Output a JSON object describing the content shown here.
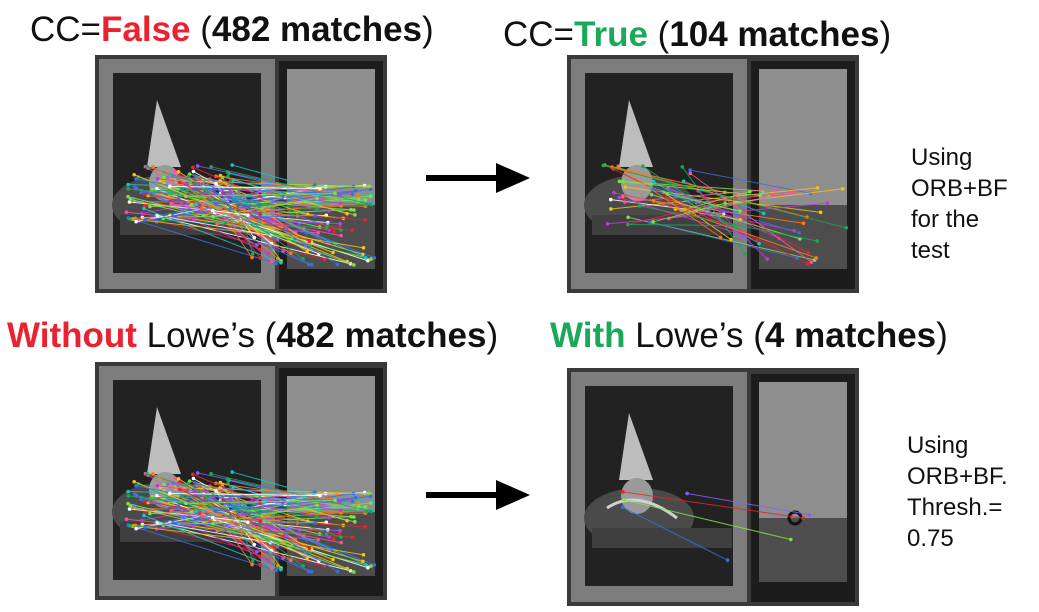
{
  "top_left_title": {
    "prefix": "CC=",
    "flag": "False",
    "open": " (",
    "count": "482 matches",
    "close": ")"
  },
  "top_right_title": {
    "prefix": "CC=",
    "flag": "True",
    "open": " (",
    "count": "104 matches",
    "close": ")"
  },
  "bottom_left_title": {
    "flag": "Without",
    "middle": " Lowe’s (",
    "count": "482 matches",
    "close": ")"
  },
  "bottom_right_title": {
    "flag": "With",
    "middle": " Lowe’s (",
    "count": "4 matches",
    "close": ")"
  },
  "note_top": [
    "Using",
    "ORB+BF",
    "for the",
    "test"
  ],
  "note_bottom": [
    "Using",
    "ORB+BF.",
    "Thresh.=",
    "0.75"
  ],
  "colors": {
    "false_red": "#e8232f",
    "true_green": "#1aa85a"
  },
  "match_counts": {
    "top_left": 482,
    "top_right": 104,
    "bottom_left": 482,
    "bottom_right": 4
  }
}
